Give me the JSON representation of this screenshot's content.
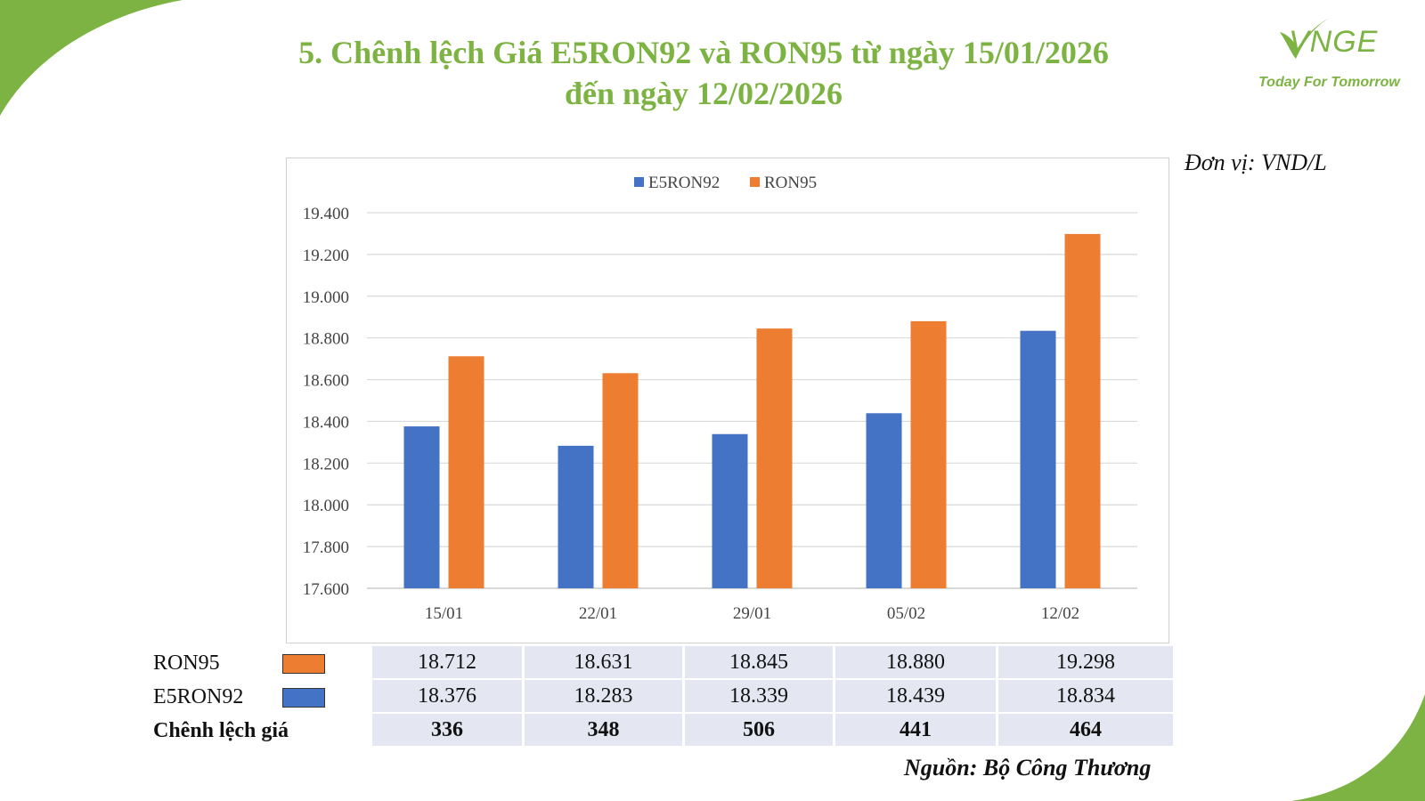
{
  "title": {
    "line1": "5. Chênh lệch Giá E5RON92 và RON95 từ ngày 15/01/2026",
    "line2": "đến ngày 12/02/2026"
  },
  "logo": {
    "mark": "VNGE",
    "tagline": "Today For Tomorrow"
  },
  "unit_label": "Đơn vị: VND/L",
  "source": "Nguồn: Bộ Công Thương",
  "colors": {
    "accent_green": "#7cb342",
    "e5ron92": "#4472c4",
    "ron95": "#ed7d31",
    "table_bg": "#e4e7f2"
  },
  "chart_data": {
    "type": "bar",
    "categories": [
      "15/01",
      "22/01",
      "29/01",
      "05/02",
      "12/02"
    ],
    "series": [
      {
        "name": "E5RON92",
        "values": [
          18376,
          18283,
          18339,
          18439,
          18834
        ],
        "color": "#4472c4"
      },
      {
        "name": "RON95",
        "values": [
          18712,
          18631,
          18845,
          18880,
          19298
        ],
        "color": "#ed7d31"
      }
    ],
    "ylim": [
      17600,
      19400
    ],
    "yticks": [
      17600,
      17800,
      18000,
      18200,
      18400,
      18600,
      18800,
      19000,
      19200,
      19400
    ],
    "ytick_labels": [
      "17.600",
      "17.800",
      "18.000",
      "18.200",
      "18.400",
      "18.600",
      "18.800",
      "19.000",
      "19.200",
      "19.400"
    ],
    "grid": true,
    "legend": "top-center"
  },
  "table": {
    "rows": [
      {
        "label": "RON95",
        "color": "#ed7d31",
        "values": [
          "18.712",
          "18.631",
          "18.845",
          "18.880",
          "19.298"
        ]
      },
      {
        "label": "E5RON92",
        "color": "#4472c4",
        "values": [
          "18.376",
          "18.283",
          "18.339",
          "18.439",
          "18.834"
        ]
      },
      {
        "label": "Chênh lệch giá",
        "values": [
          "336",
          "348",
          "506",
          "441",
          "464"
        ]
      }
    ]
  }
}
